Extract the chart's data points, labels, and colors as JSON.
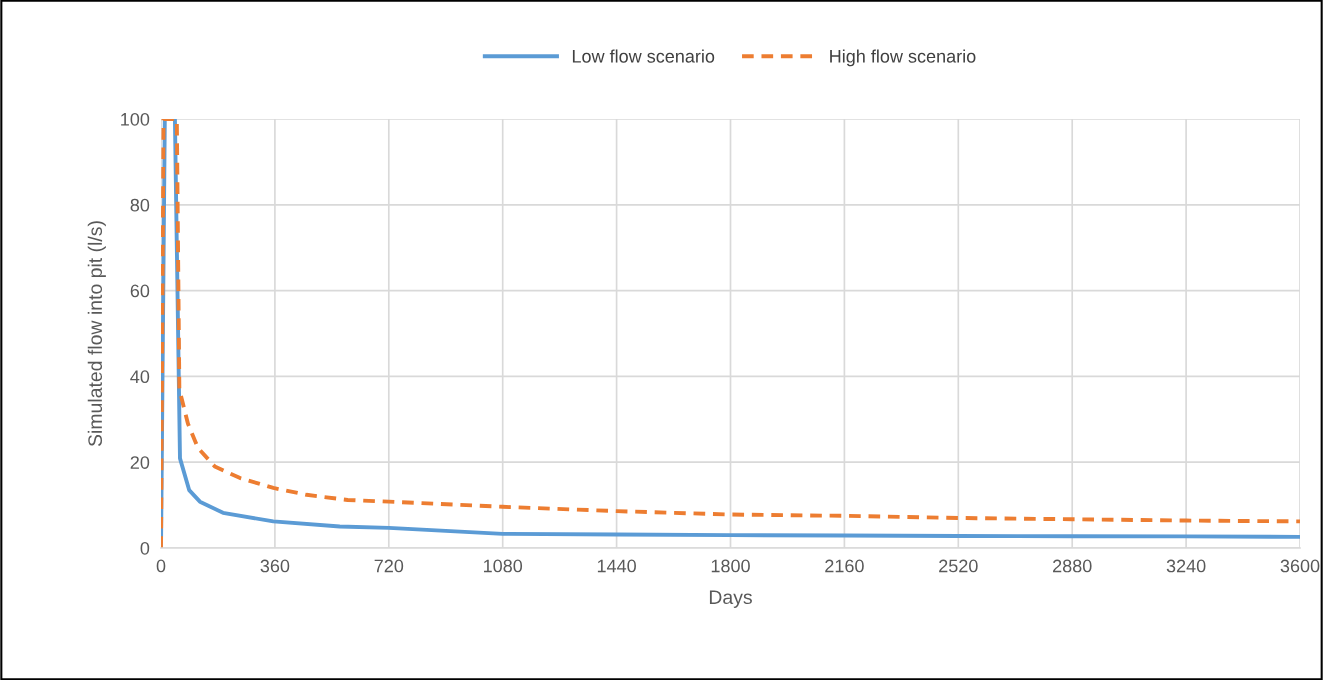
{
  "chart_data": {
    "type": "line",
    "xlabel": "Days",
    "ylabel": "Simulated flow into pit (l/s)",
    "xlim": [
      0,
      3600
    ],
    "xticks": [
      0,
      360,
      720,
      1080,
      1440,
      1800,
      2160,
      2520,
      2880,
      3240,
      3600
    ],
    "ylim": [
      0,
      100
    ],
    "yticks": [
      0,
      20,
      40,
      60,
      80,
      100
    ],
    "grid": true,
    "legend": "top",
    "marker": "none",
    "series": [
      {
        "name": "Low flow scenario",
        "color": "#5b9bd5",
        "line_style": "solid",
        "x": [
          0,
          12,
          44,
          60,
          89,
          123,
          196,
          355,
          565,
          720,
          1080,
          1440,
          1800,
          2160,
          2520,
          2880,
          3240,
          3600
        ],
        "values": [
          0,
          100,
          100,
          20.9,
          13.5,
          10.8,
          8.2,
          6.2,
          5.0,
          4.7,
          3.3,
          3.15,
          3.0,
          2.9,
          2.8,
          2.75,
          2.7,
          2.6
        ]
      },
      {
        "name": "High flow scenario",
        "color": "#ed7d31",
        "line_style": "dashed",
        "x": [
          0,
          8,
          50,
          58,
          85,
          117,
          170,
          250,
          355,
          460,
          590,
          720,
          1080,
          1440,
          1800,
          2160,
          2520,
          2880,
          3240,
          3600
        ],
        "values": [
          0,
          100,
          100,
          37,
          29,
          23.3,
          19,
          16.3,
          14,
          12.4,
          11.2,
          10.8,
          9.6,
          8.6,
          7.8,
          7.5,
          7.0,
          6.7,
          6.4,
          6.2
        ]
      }
    ]
  }
}
